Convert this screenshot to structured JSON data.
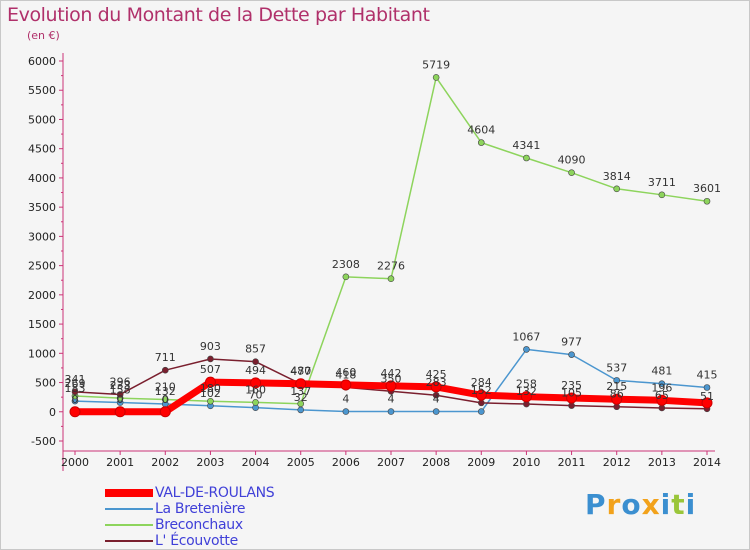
{
  "header": {
    "title": "Evolution du Montant de la Dette par Habitant",
    "subtitle": "(en €)"
  },
  "brand": {
    "letters": [
      "P",
      "r",
      "o",
      "x",
      "i",
      "t",
      "i"
    ],
    "colors": [
      "#3b8fd0",
      "#f2a21b",
      "#3b8fd0",
      "#f2a21b",
      "#3b8fd0",
      "#9ac63a",
      "#3b8fd0"
    ]
  },
  "chart_data": {
    "type": "line",
    "title": "Evolution du Montant de la Dette par Habitant",
    "subtitle": "(en €)",
    "xlabel": "",
    "ylabel": "",
    "x": [
      "2000",
      "2001",
      "2002",
      "2003",
      "2004",
      "2005",
      "2006",
      "2007",
      "2008",
      "2009",
      "2010",
      "2011",
      "2012",
      "2013",
      "2014"
    ],
    "y_ticks": [
      "-500",
      "0",
      "500",
      "1000",
      "1500",
      "2000",
      "2500",
      "3000",
      "3500",
      "4000",
      "4500",
      "5000",
      "5500",
      "6000"
    ],
    "ylim": [
      -500,
      6000
    ],
    "grid": false,
    "legend_position": "bottom-left",
    "series": [
      {
        "name": "VAL-DE-ROULANS",
        "color": "#ff0000",
        "width": 7,
        "values": [
          0,
          0,
          0,
          507,
          494,
          480,
          460,
          442,
          425,
          284,
          258,
          235,
          215,
          196,
          153
        ],
        "labels": [
          "0",
          "0",
          "0",
          "507",
          "494",
          "480",
          "460",
          "442",
          "425",
          "284",
          "258",
          "235",
          "215",
          "196",
          ""
        ]
      },
      {
        "name": "La Bretenière",
        "color": "#4b96cf",
        "width": 1.5,
        "values": [
          183,
          158,
          132,
          102,
          70,
          32,
          4,
          4,
          4,
          4,
          1067,
          977,
          537,
          481,
          415
        ],
        "labels": [
          "183",
          "158",
          "132",
          "102",
          "70",
          "32",
          "4",
          "4",
          "4",
          "",
          "1067",
          "977",
          "537",
          "481",
          "415"
        ]
      },
      {
        "name": "Breconchaux",
        "color": "#8dd45c",
        "width": 1.5,
        "values": [
          269,
          233,
          210,
          180,
          160,
          137,
          2308,
          2276,
          5719,
          4604,
          4341,
          4090,
          3814,
          3711,
          3601
        ],
        "labels": [
          "269",
          "233",
          "210",
          "180",
          "160",
          "137",
          "2308",
          "2276",
          "5719",
          "4604",
          "4341",
          "4090",
          "3814",
          "3711",
          "3601"
        ]
      },
      {
        "name": "L' Écouvotte",
        "color": "#7a1f2e",
        "width": 1.5,
        "values": [
          341,
          296,
          711,
          903,
          857,
          477,
          418,
          350,
          283,
          152,
          132,
          105,
          86,
          65,
          51
        ],
        "labels": [
          "341",
          "296",
          "711",
          "903",
          "857",
          "477",
          "418",
          "350",
          "283",
          "152",
          "132",
          "105",
          "86",
          "65",
          "51"
        ]
      }
    ]
  }
}
